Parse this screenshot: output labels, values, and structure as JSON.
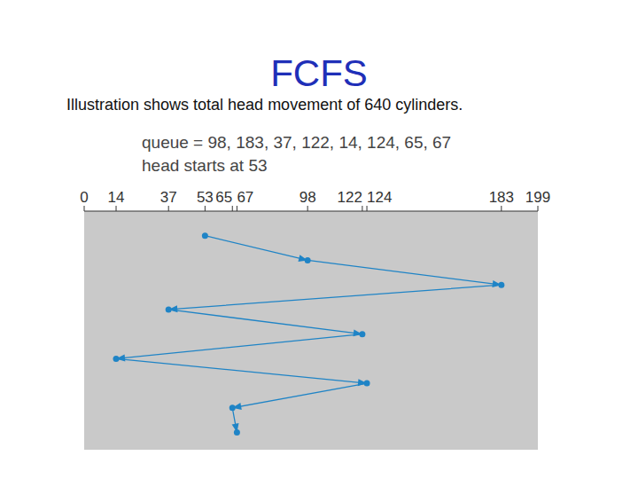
{
  "chart_data": {
    "type": "line",
    "title": "FCFS",
    "subtitle": "Illustration shows total head movement of 640 cylinders.",
    "annotations": [
      "queue = 98, 183, 37, 122, 14, 124, 65, 67",
      "head starts at 53"
    ],
    "x": [
      53,
      98,
      183,
      37,
      122,
      14,
      124,
      65,
      67
    ],
    "values": [
      8,
      7,
      6,
      5,
      4,
      3,
      2,
      1,
      0
    ],
    "xlim": [
      0,
      199
    ],
    "xticks": [
      0,
      14,
      37,
      53,
      65,
      67,
      98,
      122,
      124,
      183,
      199
    ],
    "ylim": [
      -0.7,
      9
    ],
    "tick_labels": "x",
    "grid": false,
    "color": "#1f84c6",
    "marker": "circle"
  }
}
